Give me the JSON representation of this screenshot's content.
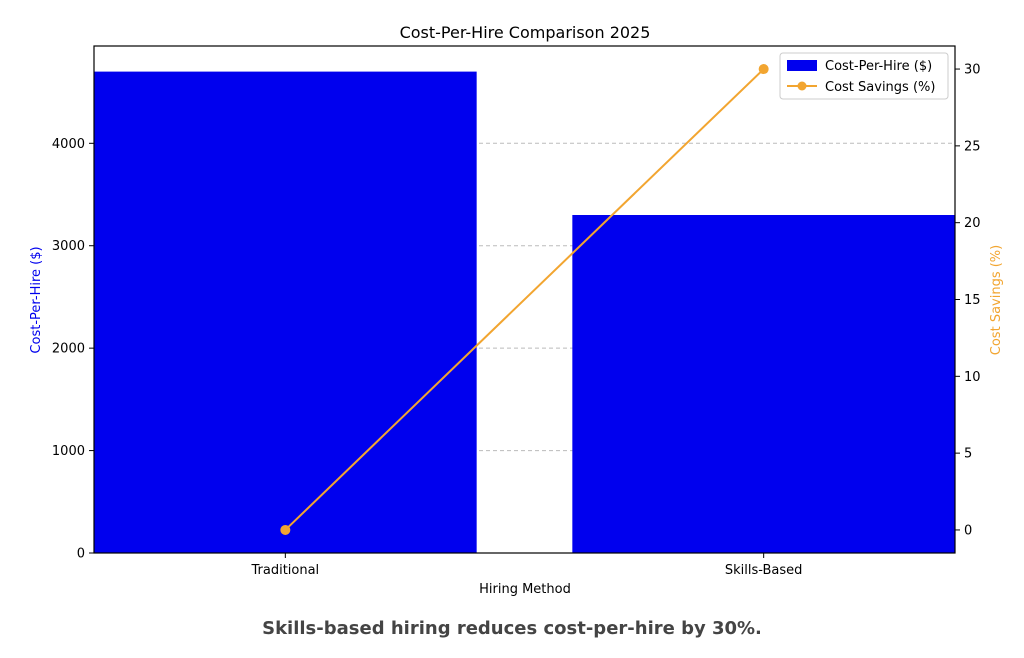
{
  "chart_data": {
    "type": "bar",
    "title": "Cost-Per-Hire Comparison 2025",
    "xlabel": "Hiring Method",
    "ylabel": "Cost-Per-Hire ($)",
    "y2label": "Cost Savings (%)",
    "categories": [
      "Traditional",
      "Skills-Based"
    ],
    "ylim": [
      0,
      4950
    ],
    "y2lim": [
      -1.5,
      31.5
    ],
    "yticks": [
      0,
      1000,
      2000,
      3000,
      4000
    ],
    "y2ticks": [
      0,
      5,
      10,
      15,
      20,
      25,
      30
    ],
    "grid": true,
    "legend_position": "top-right",
    "series": [
      {
        "name": "Cost-Per-Hire ($)",
        "kind": "bar",
        "axis": "left",
        "values": [
          4700,
          3300
        ],
        "color": "#0000ee"
      },
      {
        "name": "Cost Savings (%)",
        "kind": "line",
        "axis": "right",
        "values": [
          0,
          30
        ],
        "color": "#f2a530"
      }
    ]
  },
  "caption": "Skills-based hiring reduces cost-per-hire by 30%.",
  "colors": {
    "left_axis_label": "#0000ee",
    "right_axis_label": "#f2a530",
    "axis": "#000000",
    "grid": "#bbbbbb"
  }
}
